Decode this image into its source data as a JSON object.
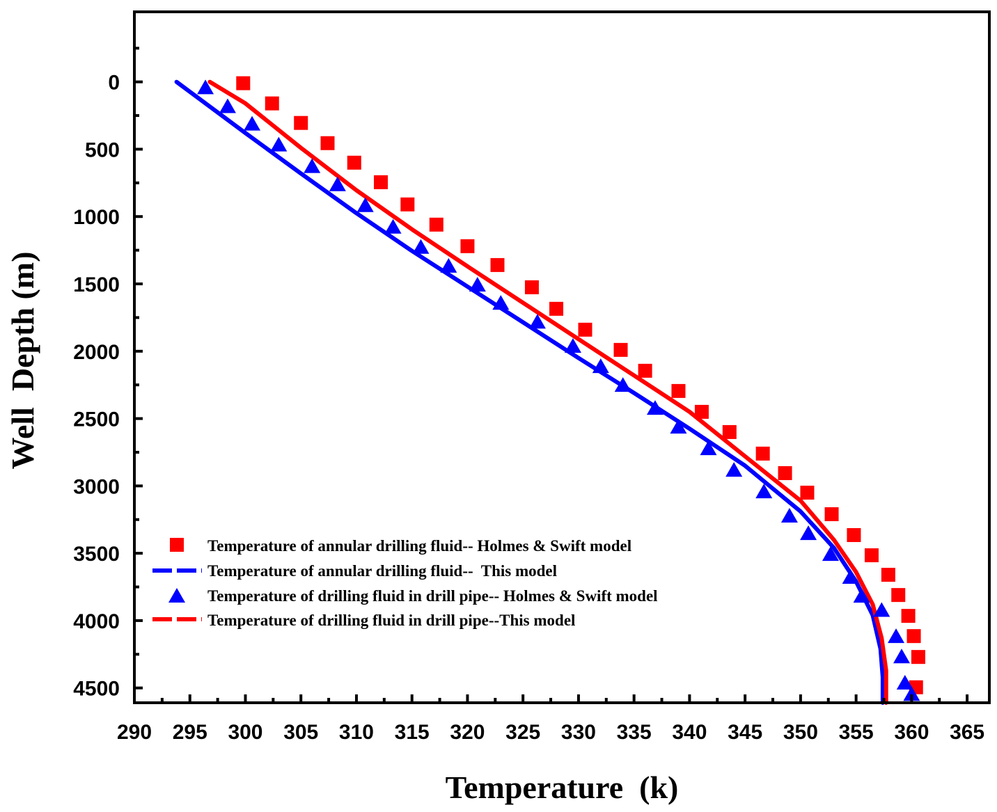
{
  "chart_data": {
    "type": "scatter",
    "title": "",
    "xlabel": "Temperature  (k)",
    "ylabel": "Well  Depth (m)",
    "xlim": [
      290,
      367
    ],
    "ylim": [
      4610,
      -520
    ],
    "y_reversed": true,
    "x_ticks": [
      290,
      295,
      300,
      305,
      310,
      315,
      320,
      325,
      330,
      335,
      340,
      345,
      350,
      355,
      360,
      365
    ],
    "y_ticks": [
      0,
      500,
      1000,
      1500,
      2000,
      2500,
      3000,
      3500,
      4000,
      4500
    ],
    "legend": {
      "placement": "lower-left",
      "entries": [
        {
          "label": "Temperature of annular drilling fluid-- Holmes & Swift model",
          "marker": "square",
          "color": "#ff0000"
        },
        {
          "label": "Temperature of annular drilling fluid--  This model",
          "marker": "dashed-line",
          "color": "#0000ff"
        },
        {
          "label": "Temperature of drilling fluid in drill pipe-- Holmes & Swift model",
          "marker": "triangle",
          "color": "#0000ff"
        },
        {
          "label": "Temperature of drilling fluid in drill pipe--This model",
          "marker": "dashed-line",
          "color": "#ff0000"
        }
      ]
    },
    "series": [
      {
        "name": "Temperature of annular drilling fluid-- Holmes & Swift model",
        "marker": "square",
        "color": "#ff0000",
        "x": [
          299.8,
          302.4,
          305.0,
          307.4,
          309.8,
          312.2,
          314.6,
          317.2,
          320.0,
          322.7,
          325.8,
          328.0,
          330.6,
          333.8,
          336.0,
          339.0,
          341.1,
          343.6,
          346.6,
          348.6,
          350.6,
          352.8,
          354.8,
          356.4,
          357.9,
          358.8,
          359.7,
          360.2,
          360.6,
          360.4
        ],
        "y": [
          10,
          160,
          305,
          455,
          600,
          745,
          910,
          1060,
          1220,
          1360,
          1525,
          1685,
          1840,
          1990,
          2145,
          2295,
          2450,
          2600,
          2760,
          2905,
          3050,
          3210,
          3365,
          3515,
          3660,
          3810,
          3965,
          4115,
          4270,
          4495
        ]
      },
      {
        "name": "Temperature of annular drilling fluid--  This model",
        "marker": "line",
        "color": "#0000ff",
        "x": [
          293.8,
          300,
          305,
          310,
          315,
          320,
          325,
          330,
          335,
          340,
          345,
          350,
          353,
          355,
          356.5,
          357.2,
          357.4,
          357.4
        ],
        "y": [
          0,
          380,
          680,
          975,
          1255,
          1520,
          1785,
          2050,
          2310,
          2575,
          2850,
          3190,
          3460,
          3710,
          3960,
          4210,
          4420,
          4610
        ]
      },
      {
        "name": "Temperature of drilling fluid in drill pipe-- Holmes & Swift model",
        "marker": "triangle",
        "color": "#0000ff",
        "x": [
          296.4,
          298.4,
          300.6,
          303.0,
          306.0,
          308.3,
          310.8,
          313.3,
          315.8,
          318.3,
          320.9,
          323.0,
          326.3,
          329.5,
          332.0,
          334.0,
          336.9,
          339.0,
          341.7,
          344.0,
          346.7,
          349.0,
          350.7,
          352.7,
          354.5,
          355.5,
          357.3,
          358.6,
          359.1,
          359.4,
          360.0
        ],
        "y": [
          40,
          180,
          310,
          465,
          625,
          760,
          915,
          1075,
          1225,
          1365,
          1505,
          1640,
          1780,
          1960,
          2110,
          2250,
          2420,
          2560,
          2720,
          2880,
          3040,
          3220,
          3350,
          3505,
          3675,
          3815,
          3920,
          4115,
          4265,
          4460,
          4545
        ]
      },
      {
        "name": "Temperature of drilling fluid in drill pipe--This model",
        "marker": "line",
        "color": "#ff0000",
        "x": [
          296.8,
          300,
          305,
          310,
          315,
          320,
          325,
          330,
          335,
          340,
          345,
          350,
          353,
          355,
          356.5,
          357.3,
          357.7,
          357.7
        ],
        "y": [
          0,
          160,
          490,
          805,
          1095,
          1370,
          1640,
          1910,
          2180,
          2450,
          2780,
          3110,
          3400,
          3640,
          3880,
          4130,
          4370,
          4610
        ]
      }
    ]
  }
}
